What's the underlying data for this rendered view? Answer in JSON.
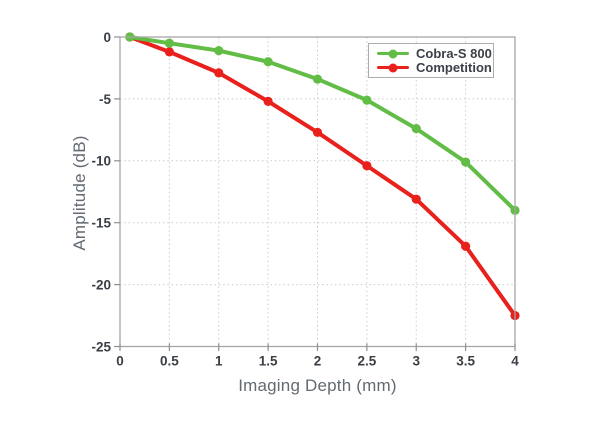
{
  "chart_data": {
    "type": "line",
    "title": "",
    "xlabel": "Imaging Depth (mm)",
    "ylabel": "Amplitude (dB)",
    "x": [
      0.1,
      0.5,
      1,
      1.5,
      2,
      2.5,
      3,
      3.5,
      4
    ],
    "series": [
      {
        "name": "Cobra-S 800",
        "color": "#62bd46",
        "values": [
          0,
          -0.5,
          -1.1,
          -2.0,
          -3.4,
          -5.1,
          -7.4,
          -10.1,
          -14.0
        ]
      },
      {
        "name": "Competition",
        "color": "#e8211d",
        "values": [
          0,
          -1.2,
          -2.9,
          -5.2,
          -7.7,
          -10.4,
          -13.1,
          -16.9,
          -22.5
        ]
      }
    ],
    "xlim": [
      0,
      4
    ],
    "ylim": [
      -25,
      0
    ],
    "x_ticks": [
      0,
      0.5,
      1,
      1.5,
      2,
      2.5,
      3,
      3.5,
      4
    ],
    "x_tick_labels": [
      "0",
      "0.5",
      "1",
      "1.5",
      "2",
      "2.5",
      "3",
      "3.5",
      "4"
    ],
    "y_ticks": [
      0,
      -5,
      -10,
      -15,
      -20,
      -25
    ],
    "y_tick_labels": [
      "0",
      "-5",
      "-10",
      "-15",
      "-20",
      "-25"
    ],
    "grid": true,
    "grid_color": "#cbcbcb",
    "spine_color": "#a6a6a6",
    "legend_position": "top-right"
  }
}
